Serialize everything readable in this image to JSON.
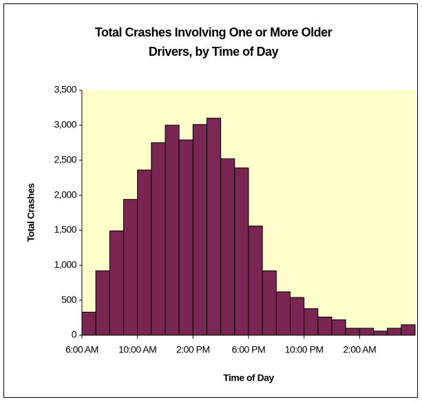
{
  "chart_data": {
    "type": "bar",
    "title": "Total Crashes Involving One or More Older Drivers, by Time of Day",
    "x_label": "Time of Day",
    "y_label": "Total Crashes",
    "categories": [
      "6:00 AM",
      null,
      null,
      null,
      "10:00 AM",
      null,
      null,
      null,
      "2:00 PM",
      null,
      null,
      null,
      "6:00 PM",
      null,
      null,
      null,
      "10:00 PM",
      null,
      null,
      null,
      "2:00 AM",
      null,
      null,
      null
    ],
    "values": [
      330,
      920,
      1490,
      1940,
      2360,
      2750,
      3000,
      2790,
      3010,
      3100,
      2520,
      2390,
      1560,
      920,
      620,
      540,
      380,
      260,
      220,
      100,
      100,
      60,
      100,
      150
    ],
    "color": "#7a2652",
    "ylim": [
      0,
      3500
    ],
    "yticks": [
      {
        "value": 0,
        "label": "0"
      },
      {
        "value": 500,
        "label": "500"
      },
      {
        "value": 1000,
        "label": "1,000"
      },
      {
        "value": 1500,
        "label": "1,500"
      },
      {
        "value": 2000,
        "label": "2,000"
      },
      {
        "value": 2500,
        "label": "2,500"
      },
      {
        "value": 3000,
        "label": "3,000"
      },
      {
        "value": 3500,
        "label": "3,500"
      }
    ],
    "grid": false
  }
}
